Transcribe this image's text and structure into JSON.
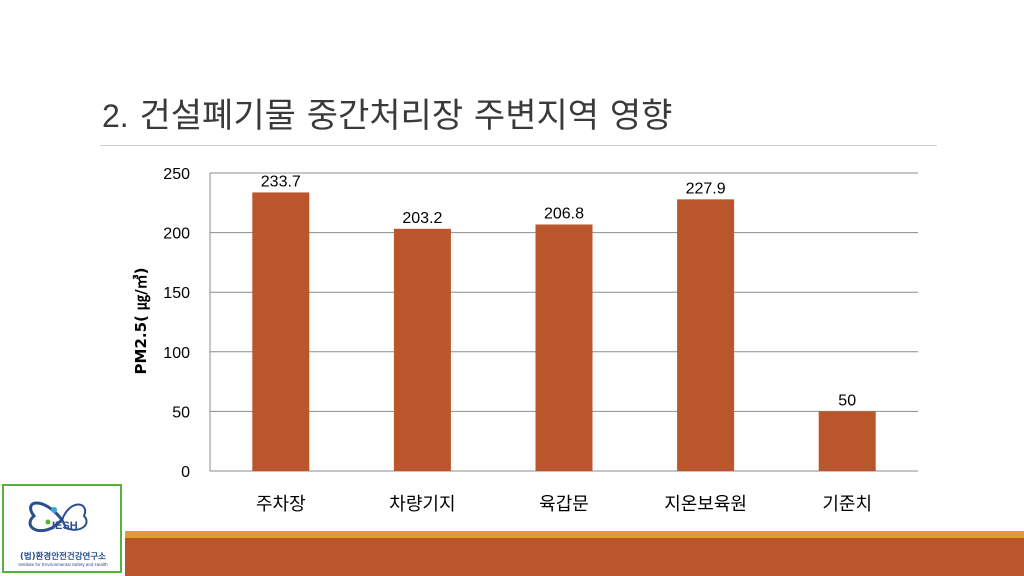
{
  "slide": {
    "title_number": "2.",
    "title_text": "건설폐기물 중간처리장 주변지역 영향"
  },
  "logo": {
    "brand": "IESH",
    "name": "(법)환경안전건강연구소",
    "subtitle": "Institute for Environmental Safety and Health"
  },
  "colors": {
    "bar": "#b9562c",
    "band_main": "#b9562c",
    "band_accent": "#e09a2e",
    "logo_border": "#59b03a",
    "logo_text": "#2a4f8f"
  },
  "chart_data": {
    "type": "bar",
    "categories": [
      "주차장",
      "차량기지",
      "육갑문",
      "지온보육원",
      "기준치"
    ],
    "values": [
      233.7,
      203.2,
      206.8,
      227.9,
      50
    ],
    "data_labels": [
      "233.7",
      "203.2",
      "206.8",
      "227.9",
      "50"
    ],
    "ylabel": "PM2.5( ㎍/㎥)",
    "ylim": [
      0,
      250
    ],
    "yticks": [
      0,
      50,
      100,
      150,
      200,
      250
    ],
    "grid": true,
    "legend": "none"
  }
}
